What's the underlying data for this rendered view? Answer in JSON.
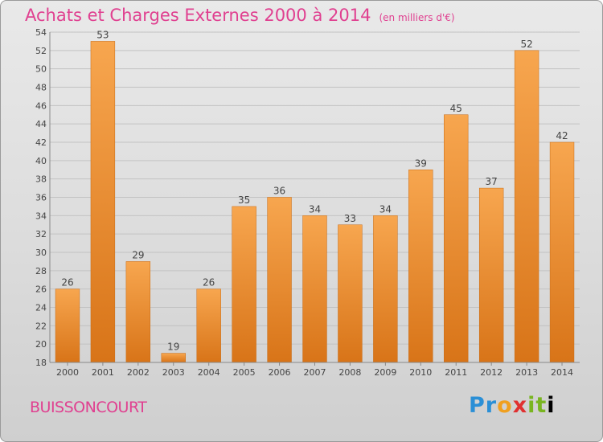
{
  "title": "Achats et Charges Externes 2000 à 2014",
  "subtitle": "(en milliers d'€)",
  "town": "BUISSONCOURT",
  "logo": [
    "P",
    "r",
    "o",
    "x",
    "i",
    "t",
    "i"
  ],
  "colors": {
    "title": "#e04090",
    "bar_top": "#f7a64f",
    "bar_bottom": "#d87418"
  },
  "chart_data": {
    "type": "bar",
    "title": "Achats et Charges Externes 2000 à 2014",
    "subtitle": "(en milliers d'€)",
    "categories": [
      "2000",
      "2001",
      "2002",
      "2003",
      "2004",
      "2005",
      "2006",
      "2007",
      "2008",
      "2009",
      "2010",
      "2011",
      "2012",
      "2013",
      "2014"
    ],
    "values": [
      26,
      53,
      29,
      19,
      26,
      35,
      36,
      34,
      33,
      34,
      39,
      45,
      37,
      52,
      42
    ],
    "ylim": [
      18,
      54
    ],
    "yticks": [
      18,
      20,
      22,
      24,
      26,
      28,
      30,
      32,
      34,
      36,
      38,
      40,
      42,
      44,
      46,
      48,
      50,
      52,
      54
    ],
    "grid": true,
    "data_labels": true
  }
}
